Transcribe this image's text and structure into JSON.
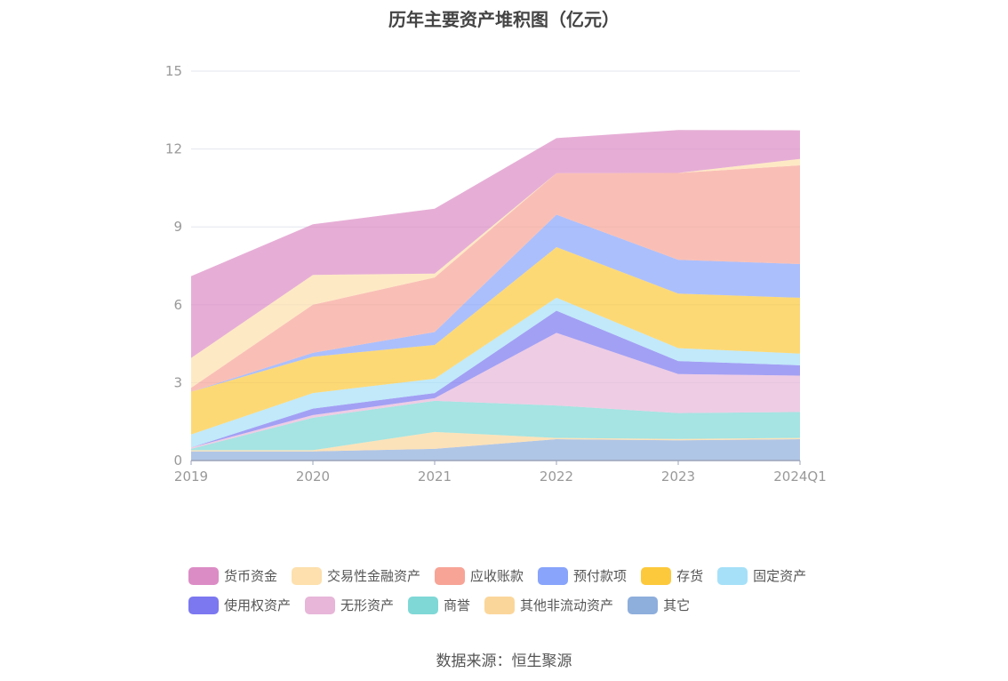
{
  "chart_data": {
    "type": "area",
    "title": "历年主要资产堆积图（亿元）",
    "stacked": true,
    "xlabel": "",
    "ylabel": "",
    "ylim": [
      0,
      15
    ],
    "yticks": [
      0,
      3,
      6,
      9,
      12,
      15
    ],
    "categories": [
      "2019",
      "2020",
      "2021",
      "2022",
      "2023",
      "2024Q1"
    ],
    "grid": true,
    "legend_position": "bottom",
    "series": [
      {
        "name": "其它",
        "color": "#8eaedc",
        "values": [
          0.35,
          0.35,
          0.45,
          0.82,
          0.78,
          0.82
        ]
      },
      {
        "name": "其他非流动资产",
        "color": "#fbd69b",
        "values": [
          0.05,
          0.05,
          0.65,
          0.05,
          0.05,
          0.05
        ]
      },
      {
        "name": "商誉",
        "color": "#7fd8d6",
        "values": [
          0.05,
          1.25,
          1.2,
          1.25,
          1.0,
          1.0
        ]
      },
      {
        "name": "无形资产",
        "color": "#e7b6d8",
        "values": [
          0.05,
          0.1,
          0.1,
          2.8,
          1.5,
          1.4
        ]
      },
      {
        "name": "使用权资产",
        "color": "#7b78f0",
        "values": [
          0.0,
          0.25,
          0.2,
          0.85,
          0.5,
          0.4
        ]
      },
      {
        "name": "固定资产",
        "color": "#a6e0f8",
        "values": [
          0.5,
          0.6,
          0.55,
          0.5,
          0.5,
          0.45
        ]
      },
      {
        "name": "存货",
        "color": "#fcc93c",
        "values": [
          1.65,
          1.4,
          1.3,
          1.95,
          2.1,
          2.15
        ]
      },
      {
        "name": "预付款项",
        "color": "#88a4fb",
        "values": [
          0.0,
          0.15,
          0.5,
          1.25,
          1.3,
          1.3
        ]
      },
      {
        "name": "应收账款",
        "color": "#f7a497",
        "values": [
          0.15,
          1.85,
          2.1,
          1.6,
          3.35,
          3.8
        ]
      },
      {
        "name": "交易性金融资产",
        "color": "#fde0ad",
        "values": [
          1.15,
          1.15,
          0.15,
          0.0,
          0.0,
          0.25
        ]
      },
      {
        "name": "货币资金",
        "color": "#dc8cc5",
        "values": [
          3.15,
          1.95,
          2.5,
          1.35,
          1.65,
          1.1
        ]
      }
    ]
  },
  "legend": {
    "row1": [
      {
        "label": "货币资金",
        "color": "#dc8cc5",
        "icon": "legend-swatch-rounded"
      },
      {
        "label": "交易性金融资产",
        "color": "#fde0ad",
        "icon": "legend-swatch-rounded"
      },
      {
        "label": "应收账款",
        "color": "#f7a497",
        "icon": "legend-swatch-rounded"
      },
      {
        "label": "预付款项",
        "color": "#88a4fb",
        "icon": "legend-swatch-rounded"
      },
      {
        "label": "存货",
        "color": "#fcc93c",
        "icon": "legend-swatch-rounded"
      },
      {
        "label": "固定资产",
        "color": "#a6e0f8",
        "icon": "legend-swatch-rounded"
      }
    ],
    "row2": [
      {
        "label": "使用权资产",
        "color": "#7b78f0",
        "icon": "legend-swatch-rounded"
      },
      {
        "label": "无形资产",
        "color": "#e7b6d8",
        "icon": "legend-swatch-rounded"
      },
      {
        "label": "商誉",
        "color": "#7fd8d6",
        "icon": "legend-swatch-rounded"
      },
      {
        "label": "其他非流动资产",
        "color": "#fbd69b",
        "icon": "legend-swatch-rounded"
      },
      {
        "label": "其它",
        "color": "#8eaedc",
        "icon": "legend-swatch-rounded"
      }
    ]
  },
  "source": "数据来源：恒生聚源"
}
